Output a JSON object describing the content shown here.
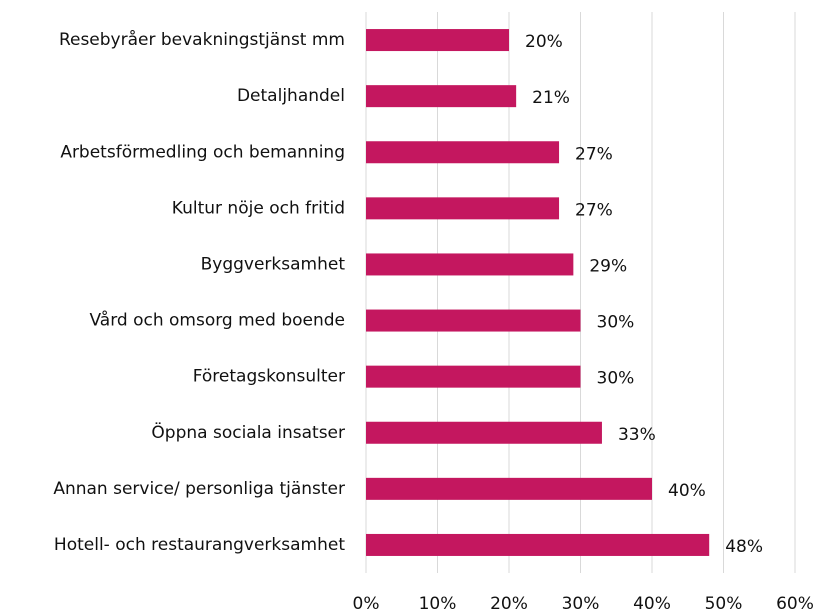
{
  "chart_data": {
    "type": "barh",
    "categories": [
      "Resebyråer bevakningstjänst mm",
      "Detaljhandel",
      "Arbetsförmedling och bemanning",
      "Kultur nöje och fritid",
      "Byggverksamhet",
      "Vård och omsorg med boende",
      "Företagskonsulter",
      "Öppna sociala insatser",
      "Annan service/ personliga tjänster",
      "Hotell- och restaurangverksamhet"
    ],
    "values": [
      20,
      21,
      27,
      27,
      29,
      30,
      30,
      33,
      40,
      48
    ],
    "value_labels": [
      "20%",
      "21%",
      "27%",
      "27%",
      "29%",
      "30%",
      "30%",
      "33%",
      "40%",
      "48%"
    ],
    "color": "#c4175f",
    "xlim": [
      0,
      60
    ],
    "xticks": [
      {
        "value": 0,
        "label": "0%"
      },
      {
        "value": 10,
        "label": "10%"
      },
      {
        "value": 20,
        "label": "20%"
      },
      {
        "value": 30,
        "label": "30%"
      },
      {
        "value": 40,
        "label": "40%"
      },
      {
        "value": 50,
        "label": "50%"
      },
      {
        "value": 60,
        "label": "60%"
      }
    ],
    "grid": true
  }
}
